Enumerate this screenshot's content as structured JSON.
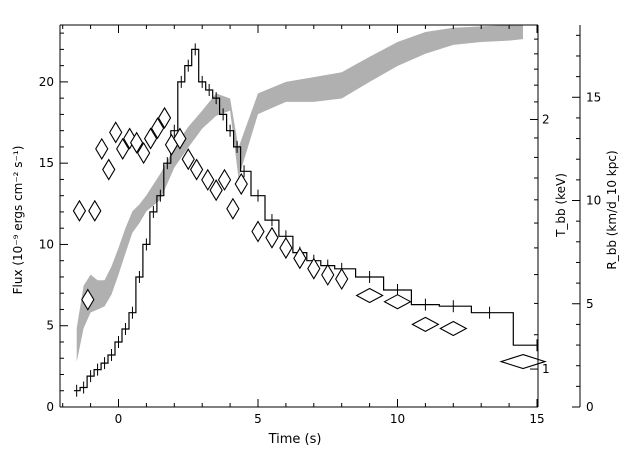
{
  "chart_data": {
    "type": "line",
    "title": "",
    "xlabel": "Time (s)",
    "ylabel_left": "Flux (10⁻⁹ ergs cm⁻² s⁻¹)",
    "ylabel_mid": "T_bb (keV)",
    "ylabel_right": "R_bb (km/d_10 kpc)",
    "xlim": [
      -2,
      15
    ],
    "ylim_left": [
      0,
      23.5
    ],
    "ylim_right": [
      0,
      18.5
    ],
    "temperature_axis": {
      "scale": "log",
      "range": [
        0.9,
        2.6
      ]
    },
    "x_ticks": [
      0,
      5,
      10,
      15
    ],
    "x_tick_labels": [
      "0",
      "5",
      "10",
      "15"
    ],
    "y_ticks_left": [
      0,
      5,
      10,
      15,
      20
    ],
    "y_tick_labels_left": [
      "0",
      "5",
      "10",
      "15",
      "20"
    ],
    "y_ticks_mid": [
      1,
      2
    ],
    "y_tick_labels_mid": [
      "1",
      "2"
    ],
    "y_ticks_right": [
      0,
      5,
      10,
      15
    ],
    "y_tick_labels_right": [
      "0",
      "5",
      "10",
      "15"
    ],
    "series": [
      {
        "kind": "flux_histogram",
        "color": "#000000",
        "x": [
          -1.5,
          -1.25,
          -1.0,
          -0.75,
          -0.5,
          -0.25,
          0.0,
          0.25,
          0.5,
          0.75,
          1.0,
          1.25,
          1.5,
          1.75,
          2.0,
          2.25,
          2.5,
          2.75,
          3.0,
          3.25,
          3.5,
          3.75,
          4.0,
          4.25,
          4.5,
          5.0,
          5.5,
          6.0,
          6.5,
          7.0,
          7.5,
          8.0,
          9.0,
          10.0,
          11.0,
          12.0,
          13.3,
          15.0
        ],
        "y": [
          1.0,
          1.2,
          1.9,
          2.3,
          2.7,
          3.2,
          4.0,
          4.8,
          5.8,
          8.0,
          10.0,
          12.0,
          13.0,
          15.0,
          17.0,
          20.0,
          21.0,
          22.0,
          20.0,
          19.5,
          19.0,
          18.0,
          17.0,
          16.0,
          14.5,
          13.0,
          11.5,
          10.5,
          9.5,
          9.0,
          8.7,
          8.5,
          8.0,
          7.2,
          6.3,
          6.2,
          5.8,
          3.8
        ]
      },
      {
        "kind": "temperature_band",
        "color": "#b0b0b0",
        "x": [
          -1.5,
          -1.25,
          -1.0,
          -0.75,
          -0.5,
          -0.25,
          0.0,
          0.25,
          0.5,
          0.75,
          1.0,
          1.5,
          2.0,
          2.5,
          3.0,
          3.5,
          4.0,
          4.3,
          5.0,
          6.0,
          7.0,
          8.0,
          9.0,
          10.0,
          11.0,
          12.0,
          13.0,
          14.0,
          14.5
        ],
        "y_low": [
          1.02,
          1.12,
          1.17,
          1.18,
          1.19,
          1.23,
          1.3,
          1.38,
          1.46,
          1.5,
          1.55,
          1.6,
          1.75,
          1.85,
          1.95,
          2.02,
          2.05,
          1.7,
          2.03,
          2.1,
          2.1,
          2.12,
          2.22,
          2.32,
          2.4,
          2.46,
          2.48,
          2.49,
          2.5
        ],
        "y_high": [
          1.12,
          1.26,
          1.3,
          1.28,
          1.28,
          1.33,
          1.4,
          1.48,
          1.55,
          1.58,
          1.62,
          1.72,
          1.85,
          1.96,
          2.05,
          2.15,
          2.12,
          1.85,
          2.15,
          2.22,
          2.25,
          2.28,
          2.38,
          2.48,
          2.55,
          2.58,
          2.59,
          2.6,
          2.6
        ]
      },
      {
        "kind": "radius_diamonds",
        "color": "#000000",
        "x": [
          -1.4,
          -1.1,
          -0.85,
          -0.6,
          -0.35,
          -0.1,
          0.15,
          0.4,
          0.65,
          0.9,
          1.15,
          1.4,
          1.65,
          1.9,
          2.2,
          2.5,
          2.8,
          3.2,
          3.5,
          3.8,
          4.1,
          4.4,
          5.0,
          5.5,
          6.0,
          6.5,
          7.0,
          7.5,
          8.0,
          9.0,
          10.0,
          11.0,
          12.0,
          14.5
        ],
        "y": [
          9.5,
          5.2,
          9.5,
          12.5,
          11.5,
          13.3,
          12.5,
          13.0,
          12.8,
          12.3,
          13.0,
          13.5,
          14.0,
          12.7,
          13.0,
          12.0,
          11.5,
          11.0,
          10.5,
          11.0,
          9.6,
          10.8,
          8.5,
          8.2,
          7.7,
          7.2,
          6.7,
          6.4,
          6.2,
          5.4,
          5.1,
          4.0,
          3.8,
          2.2
        ]
      }
    ]
  }
}
